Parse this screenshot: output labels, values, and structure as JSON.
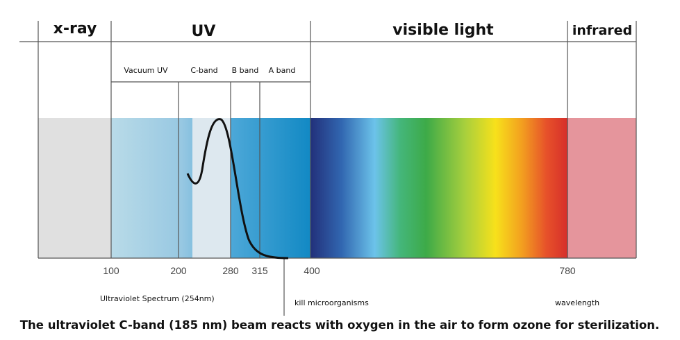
{
  "header": {
    "bands": [
      "x-ray",
      "UV",
      "visible light",
      "infrared"
    ]
  },
  "uv_subbands": [
    "Vacuum UV",
    "C-band",
    "B band",
    "A band"
  ],
  "axis_labels": [
    "100",
    "200",
    "280",
    "315",
    "400",
    "780"
  ],
  "annotations": {
    "uv_spectrum": "Ultraviolet Spectrum (254nm)",
    "kill": "kill microorganisms",
    "wavelength": "wavelength"
  },
  "caption": "The ultraviolet C-band (185 nm) beam reacts with oxygen in the air to form ozone for sterilization."
}
